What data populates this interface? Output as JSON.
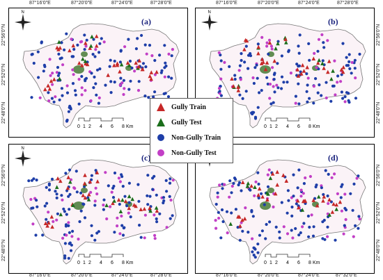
{
  "map": {
    "top_lon_labels": [
      "87°16'0\"E",
      "87°20'0\"E",
      "87°24'0\"E",
      "87°28'0\"E",
      "87°32'0\"E"
    ],
    "bottom_lon_labels": [
      "87°16'0\"E",
      "87°20'0\"E",
      "87°24'0\"E",
      "87°28'0\"E",
      "87°32'0\"E"
    ],
    "lat_labels": [
      "22°56'0\"N",
      "22°52'0\"N",
      "22°48'0\"N"
    ],
    "scale_ticks": [
      "0",
      "1",
      "2",
      "4",
      "6",
      "8"
    ],
    "scale_unit": "Km",
    "north_letter": "N"
  },
  "panels": [
    {
      "label": "(a)"
    },
    {
      "label": "(b)"
    },
    {
      "label": "(c)"
    },
    {
      "label": "(d)"
    }
  ],
  "legend": {
    "items": [
      {
        "label": "Gully Train",
        "symbol": "triangle",
        "color": "#c62828"
      },
      {
        "label": "Gully Test",
        "symbol": "triangle",
        "color": "#1b6e1b"
      },
      {
        "label": "Non-Gully Train",
        "symbol": "circle",
        "color": "#1e3ea8"
      },
      {
        "label": "Non-Gully Test",
        "symbol": "circle",
        "color": "#c23fc6"
      }
    ]
  }
}
